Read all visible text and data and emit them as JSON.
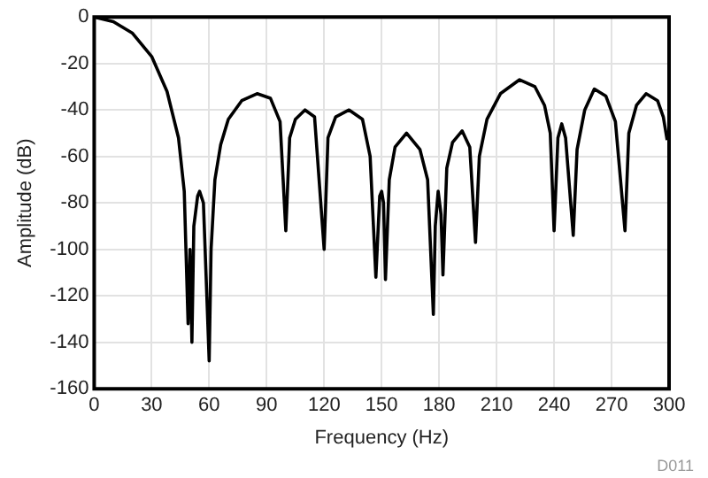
{
  "chart_data": {
    "type": "line",
    "xlabel": "Frequency (Hz)",
    "ylabel": "Amplitude (dB)",
    "annotations": [
      "D011"
    ],
    "x": [
      0,
      10,
      20,
      30,
      38,
      44,
      47,
      49,
      50,
      51,
      52,
      54,
      55,
      57,
      59,
      60,
      61,
      63,
      66,
      70,
      77,
      85,
      92,
      97,
      100,
      102,
      105,
      110,
      115,
      120,
      122,
      126,
      133,
      140,
      144,
      147,
      149,
      150,
      151,
      152,
      154,
      157,
      163,
      170,
      174,
      177,
      178,
      179.5,
      181,
      182,
      184,
      187,
      192,
      196,
      199,
      201,
      205,
      212,
      222,
      230,
      235,
      238,
      240,
      242,
      244,
      246,
      250,
      252,
      256,
      261,
      267,
      272,
      277,
      279,
      283,
      288,
      294,
      297,
      299
    ],
    "series": [
      {
        "color": "#000000",
        "values": [
          0,
          -2,
          -7,
          -17,
          -32,
          -52,
          -75,
          -132,
          -100,
          -140,
          -90,
          -77,
          -75,
          -80,
          -125,
          -148,
          -100,
          -70,
          -55,
          -44,
          -36,
          -33,
          -35,
          -45,
          -92,
          -52,
          -44,
          -40,
          -43,
          -100,
          -52,
          -43,
          -40,
          -44,
          -60,
          -112,
          -77,
          -75,
          -80,
          -113,
          -70,
          -56,
          -50,
          -57,
          -70,
          -128,
          -90,
          -75,
          -85,
          -111,
          -65,
          -54,
          -49,
          -56,
          -97,
          -60,
          -44,
          -33,
          -27,
          -30,
          -38,
          -50,
          -92,
          -52,
          -46,
          -52,
          -94,
          -57,
          -40,
          -31,
          -34,
          -45,
          -92,
          -50,
          -38,
          -33,
          -36,
          -43,
          -53
        ]
      }
    ],
    "xlim": [
      0,
      300
    ],
    "xticks": [
      0,
      30,
      60,
      90,
      120,
      150,
      180,
      210,
      240,
      270,
      300
    ],
    "ylim": [
      -160,
      0
    ],
    "yticks": [
      -160,
      -140,
      -120,
      -100,
      -80,
      -60,
      -40,
      -20,
      0
    ],
    "grid": true,
    "legend": false,
    "marker": "none",
    "line_style": "solid"
  }
}
